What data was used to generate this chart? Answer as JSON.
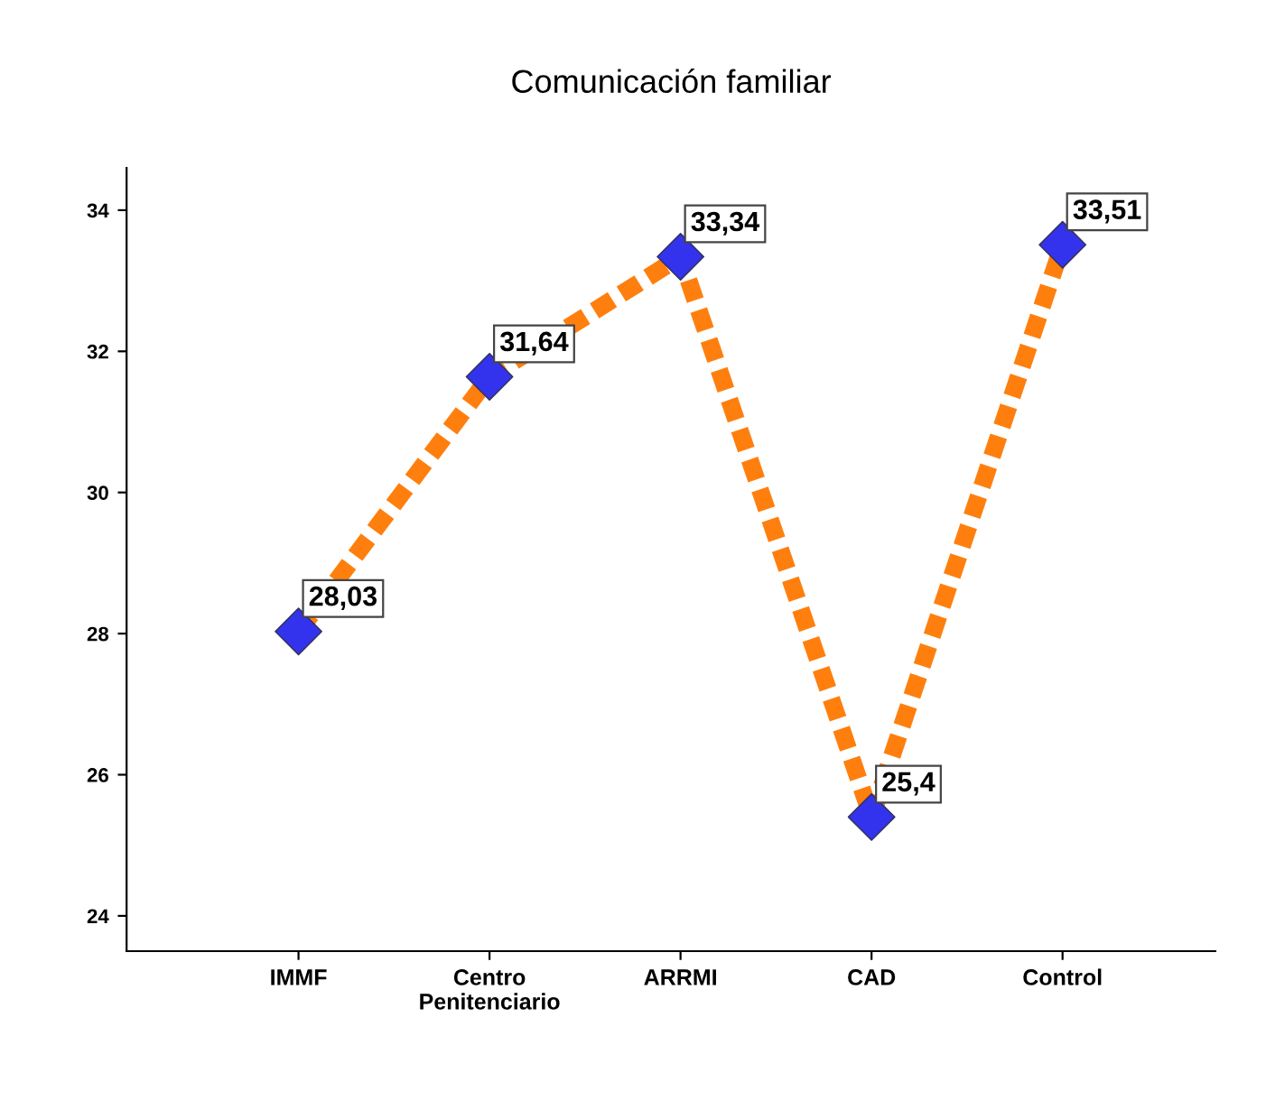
{
  "chart_data": {
    "type": "line",
    "title": "Comunicación familiar",
    "categories": [
      "IMMF",
      "Centro\nPenitenciario",
      "ARRMI",
      "CAD",
      "Control"
    ],
    "series": [
      {
        "color": "#ff7f0e",
        "colors": [
          "#3333ee",
          "#3333ee",
          "#3333ee",
          "#3333ee",
          "#3333ee"
        ],
        "values": [
          28.03,
          31.64,
          33.34,
          25.4,
          33.51
        ],
        "value_labels": [
          "28,03",
          "31,64",
          "33,34",
          "25,4",
          "33,51"
        ]
      }
    ],
    "ylim": [
      23.5,
      34.6
    ],
    "yticks": [
      24,
      26,
      28,
      30,
      32,
      34
    ],
    "grid": false,
    "legend": false,
    "marker": "diamond",
    "line_style": "dashed"
  }
}
